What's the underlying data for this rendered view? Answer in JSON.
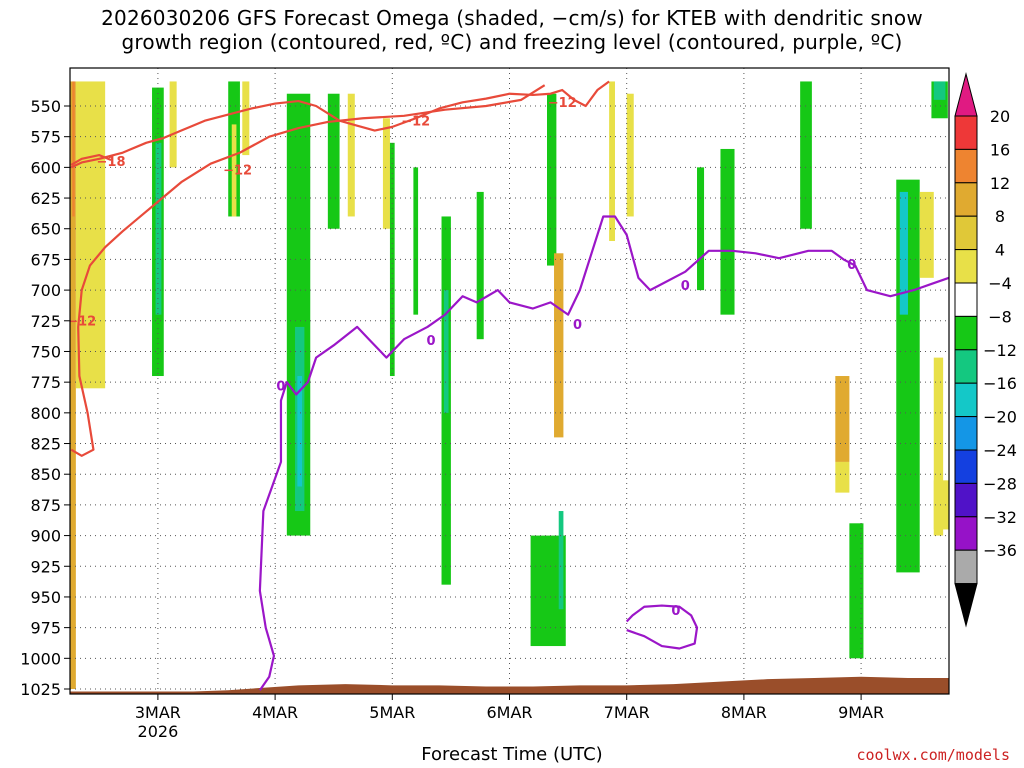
{
  "title_line1": "2026030206 GFS Forecast Omega (shaded, −cm/s) for KTEB with dendritic snow",
  "title_line2": "growth region (contoured, red, ºC) and freezing level (contoured, purple, ºC)",
  "xlabel": "Forecast Time (UTC)",
  "credit": "coolwx.com/models",
  "colors": {
    "dgz_contour": "#e84a3a",
    "freezing_contour": "#9b16c8",
    "ground": "#9a4e2a",
    "gridline": "#555555"
  },
  "chart_data": {
    "type": "heatmap",
    "title": "2026030206 GFS Forecast Omega (shaded, −cm/s) for KTEB with dendritic snow growth region (contoured, red, ºC) and freezing level (contoured, purple, ºC)",
    "xlabel": "Forecast Time (UTC)",
    "ylabel": "",
    "x_ticks": [
      {
        "label": "3MAR",
        "sub": "2026",
        "day": 3
      },
      {
        "label": "4MAR",
        "sub": "",
        "day": 4
      },
      {
        "label": "5MAR",
        "sub": "",
        "day": 5
      },
      {
        "label": "6MAR",
        "sub": "",
        "day": 6
      },
      {
        "label": "7MAR",
        "sub": "",
        "day": 7
      },
      {
        "label": "8MAR",
        "sub": "",
        "day": 8
      },
      {
        "label": "9MAR",
        "sub": "",
        "day": 9
      }
    ],
    "xlim": [
      2.25,
      9.75
    ],
    "y_ticks": [
      550,
      575,
      600,
      625,
      650,
      675,
      700,
      725,
      750,
      775,
      800,
      825,
      850,
      875,
      900,
      925,
      950,
      975,
      1000,
      1025
    ],
    "ylim": [
      1030,
      527
    ],
    "grid": true,
    "colorbar": {
      "labels": [
        "20",
        "16",
        "12",
        "8",
        "4",
        "−4",
        "−8",
        "−12",
        "−16",
        "−20",
        "−24",
        "−28",
        "−32",
        "−36"
      ],
      "boundaries": [
        20,
        16,
        12,
        8,
        4,
        -4,
        -8,
        -12,
        -16,
        -20,
        -24,
        -28,
        -32,
        -36
      ],
      "colors": [
        "#ee3838",
        "#ee8430",
        "#e0aa30",
        "#e0c838",
        "#e8e048",
        "#ffffff",
        "#16c816",
        "#14c880",
        "#14c8c8",
        "#1496e6",
        "#1440e0",
        "#5012c8",
        "#9612c8",
        "#aaaaaa"
      ],
      "top_color": "#e01a82",
      "bottom_color": "#000000"
    },
    "omega_cells": [
      {
        "day": 2.3,
        "day2": 2.55,
        "p1": 530,
        "p2": 780,
        "c": "#e8e048"
      },
      {
        "day": 2.25,
        "day2": 2.3,
        "p1": 530,
        "p2": 1025,
        "c": "#e0aa30"
      },
      {
        "day": 2.27,
        "day2": 2.29,
        "p1": 530,
        "p2": 640,
        "c": "#ee8430"
      },
      {
        "day": 2.95,
        "day2": 3.05,
        "p1": 535,
        "p2": 770,
        "c": "#16c816"
      },
      {
        "day": 2.98,
        "day2": 3.03,
        "p1": 580,
        "p2": 720,
        "c": "#14c880"
      },
      {
        "day": 3.1,
        "day2": 3.16,
        "p1": 530,
        "p2": 600,
        "c": "#e8e048"
      },
      {
        "day": 3.6,
        "day2": 3.7,
        "p1": 530,
        "p2": 640,
        "c": "#16c816"
      },
      {
        "day": 3.72,
        "day2": 3.78,
        "p1": 530,
        "p2": 590,
        "c": "#e8e048"
      },
      {
        "day": 3.63,
        "day2": 3.67,
        "p1": 565,
        "p2": 640,
        "c": "#e8e048"
      },
      {
        "day": 4.1,
        "day2": 4.3,
        "p1": 540,
        "p2": 900,
        "c": "#16c816"
      },
      {
        "day": 4.17,
        "day2": 4.25,
        "p1": 730,
        "p2": 880,
        "c": "#14c880"
      },
      {
        "day": 4.19,
        "day2": 4.23,
        "p1": 770,
        "p2": 860,
        "c": "#14c8c8"
      },
      {
        "day": 4.45,
        "day2": 4.55,
        "p1": 540,
        "p2": 650,
        "c": "#16c816"
      },
      {
        "day": 4.62,
        "day2": 4.68,
        "p1": 540,
        "p2": 640,
        "c": "#e8e048"
      },
      {
        "day": 4.92,
        "day2": 4.98,
        "p1": 560,
        "p2": 650,
        "c": "#e8e048"
      },
      {
        "day": 4.98,
        "day2": 5.02,
        "p1": 580,
        "p2": 770,
        "c": "#16c816"
      },
      {
        "day": 5.18,
        "day2": 5.22,
        "p1": 600,
        "p2": 720,
        "c": "#16c816"
      },
      {
        "day": 5.42,
        "day2": 5.5,
        "p1": 640,
        "p2": 940,
        "c": "#16c816"
      },
      {
        "day": 5.44,
        "day2": 5.48,
        "p1": 700,
        "p2": 800,
        "c": "#14c880"
      },
      {
        "day": 5.72,
        "day2": 5.78,
        "p1": 620,
        "p2": 740,
        "c": "#16c816"
      },
      {
        "day": 6.32,
        "day2": 6.4,
        "p1": 540,
        "p2": 680,
        "c": "#16c816"
      },
      {
        "day": 6.38,
        "day2": 6.46,
        "p1": 670,
        "p2": 820,
        "c": "#e0aa30"
      },
      {
        "day": 6.18,
        "day2": 6.48,
        "p1": 900,
        "p2": 990,
        "c": "#16c816"
      },
      {
        "day": 6.42,
        "day2": 6.46,
        "p1": 880,
        "p2": 960,
        "c": "#14c880"
      },
      {
        "day": 6.85,
        "day2": 6.9,
        "p1": 530,
        "p2": 660,
        "c": "#e8e048"
      },
      {
        "day": 7.0,
        "day2": 7.06,
        "p1": 540,
        "p2": 640,
        "c": "#e8e048"
      },
      {
        "day": 7.8,
        "day2": 7.92,
        "p1": 585,
        "p2": 720,
        "c": "#16c816"
      },
      {
        "day": 7.6,
        "day2": 7.66,
        "p1": 600,
        "p2": 700,
        "c": "#16c816"
      },
      {
        "day": 8.48,
        "day2": 8.58,
        "p1": 530,
        "p2": 650,
        "c": "#16c816"
      },
      {
        "day": 8.78,
        "day2": 8.9,
        "p1": 770,
        "p2": 840,
        "c": "#e0aa30"
      },
      {
        "day": 8.78,
        "day2": 8.9,
        "p1": 840,
        "p2": 865,
        "c": "#e8e048"
      },
      {
        "day": 8.9,
        "day2": 9.02,
        "p1": 890,
        "p2": 1000,
        "c": "#16c816"
      },
      {
        "day": 9.3,
        "day2": 9.5,
        "p1": 610,
        "p2": 930,
        "c": "#16c816"
      },
      {
        "day": 9.33,
        "day2": 9.4,
        "p1": 620,
        "p2": 720,
        "c": "#14c8c8"
      },
      {
        "day": 9.5,
        "day2": 9.62,
        "p1": 620,
        "p2": 690,
        "c": "#e8e048"
      },
      {
        "day": 9.62,
        "day2": 9.7,
        "p1": 755,
        "p2": 900,
        "c": "#e8e048"
      },
      {
        "day": 9.62,
        "day2": 9.75,
        "p1": 855,
        "p2": 895,
        "c": "#e8e048"
      },
      {
        "day": 9.6,
        "day2": 9.74,
        "p1": 530,
        "p2": 560,
        "c": "#16c816"
      },
      {
        "day": 9.62,
        "day2": 9.72,
        "p1": 530,
        "p2": 545,
        "c": "#14c880"
      }
    ],
    "ground_level_hpa": [
      [
        2.25,
        1027
      ],
      [
        3.0,
        1027
      ],
      [
        3.3,
        1027
      ],
      [
        3.6,
        1026
      ],
      [
        3.9,
        1024
      ],
      [
        4.2,
        1022
      ],
      [
        4.6,
        1021
      ],
      [
        5.0,
        1022
      ],
      [
        5.4,
        1022
      ],
      [
        5.8,
        1023
      ],
      [
        6.2,
        1023
      ],
      [
        6.6,
        1022
      ],
      [
        7.0,
        1022
      ],
      [
        7.4,
        1021
      ],
      [
        7.8,
        1019
      ],
      [
        8.2,
        1017
      ],
      [
        8.6,
        1016
      ],
      [
        9.0,
        1015
      ],
      [
        9.4,
        1016
      ],
      [
        9.75,
        1016
      ]
    ],
    "freezing_level": [
      [
        3.87,
        1026
      ],
      [
        3.95,
        1015
      ],
      [
        3.99,
        998
      ],
      [
        3.92,
        975
      ],
      [
        3.87,
        945
      ],
      [
        3.9,
        880
      ],
      [
        4.05,
        840
      ],
      [
        4.05,
        790
      ],
      [
        4.1,
        775
      ],
      [
        4.18,
        785
      ],
      [
        4.28,
        775
      ],
      [
        4.35,
        755
      ],
      [
        4.5,
        745
      ],
      [
        4.7,
        730
      ],
      [
        4.8,
        740
      ],
      [
        4.95,
        755
      ],
      [
        5.1,
        740
      ],
      [
        5.3,
        730
      ],
      [
        5.45,
        720
      ],
      [
        5.6,
        705
      ],
      [
        5.72,
        710
      ],
      [
        5.9,
        700
      ],
      [
        6.0,
        710
      ],
      [
        6.2,
        715
      ],
      [
        6.35,
        710
      ],
      [
        6.5,
        720
      ],
      [
        6.6,
        700
      ],
      [
        6.8,
        640
      ],
      [
        6.9,
        640
      ],
      [
        7.0,
        655
      ],
      [
        7.1,
        690
      ],
      [
        7.2,
        700
      ],
      [
        7.3,
        695
      ],
      [
        7.5,
        685
      ],
      [
        7.7,
        668
      ],
      [
        7.9,
        668
      ],
      [
        8.1,
        670
      ],
      [
        8.3,
        674
      ],
      [
        8.55,
        668
      ],
      [
        8.75,
        668
      ],
      [
        8.85,
        675
      ],
      [
        8.95,
        680
      ],
      [
        9.05,
        700
      ],
      [
        9.25,
        705
      ],
      [
        9.45,
        700
      ],
      [
        9.6,
        695
      ],
      [
        9.75,
        690
      ]
    ],
    "freezing_level_low": [
      [
        7.0,
        970
      ],
      [
        7.05,
        965
      ],
      [
        7.15,
        958
      ],
      [
        7.3,
        957
      ],
      [
        7.45,
        958
      ],
      [
        7.55,
        965
      ],
      [
        7.6,
        975
      ],
      [
        7.58,
        988
      ],
      [
        7.45,
        992
      ],
      [
        7.3,
        990
      ],
      [
        7.15,
        982
      ],
      [
        7.0,
        977
      ]
    ],
    "dgz_minus12": [
      [
        2.26,
        600
      ],
      [
        2.35,
        596
      ],
      [
        2.5,
        593
      ],
      [
        2.7,
        588
      ],
      [
        2.9,
        580
      ],
      [
        3.05,
        576
      ],
      [
        3.2,
        570
      ],
      [
        3.4,
        562
      ],
      [
        3.6,
        557
      ],
      [
        3.8,
        552
      ],
      [
        4.0,
        548
      ],
      [
        4.2,
        546
      ],
      [
        4.35,
        550
      ],
      [
        4.55,
        562
      ],
      [
        4.7,
        566
      ],
      [
        4.85,
        570
      ],
      [
        5.0,
        567
      ],
      [
        5.2,
        560
      ],
      [
        5.4,
        552
      ],
      [
        5.6,
        547
      ],
      [
        5.8,
        544
      ],
      [
        6.0,
        540
      ],
      [
        6.2,
        541
      ],
      [
        6.35,
        540
      ],
      [
        6.45,
        537
      ],
      [
        6.55,
        545
      ],
      [
        6.65,
        550
      ],
      [
        6.75,
        537
      ],
      [
        6.85,
        530
      ]
    ],
    "dgz_minus12_left": [
      [
        2.26,
        830
      ],
      [
        2.35,
        835
      ],
      [
        2.45,
        830
      ],
      [
        2.4,
        800
      ],
      [
        2.33,
        770
      ],
      [
        2.32,
        730
      ],
      [
        2.35,
        700
      ],
      [
        2.42,
        680
      ],
      [
        2.55,
        665
      ],
      [
        2.7,
        652
      ],
      [
        2.85,
        640
      ],
      [
        3.0,
        628
      ],
      [
        3.2,
        612
      ],
      [
        3.45,
        597
      ],
      [
        3.7,
        588
      ],
      [
        3.95,
        575
      ],
      [
        4.2,
        568
      ],
      [
        4.45,
        563
      ],
      [
        4.75,
        560
      ],
      [
        5.1,
        558
      ],
      [
        5.45,
        553
      ],
      [
        5.8,
        550
      ],
      [
        6.1,
        545
      ],
      [
        6.3,
        533
      ]
    ],
    "dgz_minus18": [
      [
        2.26,
        598
      ],
      [
        2.35,
        593
      ],
      [
        2.5,
        590
      ],
      [
        2.6,
        594
      ]
    ],
    "contour_labels": [
      {
        "text": "−18",
        "day": 2.6,
        "p": 596,
        "c": "#e84a3a"
      },
      {
        "text": "−12",
        "day": 3.68,
        "p": 603,
        "c": "#e84a3a"
      },
      {
        "text": "−12",
        "day": 5.2,
        "p": 563,
        "c": "#e84a3a"
      },
      {
        "text": "−12",
        "day": 6.45,
        "p": 548,
        "c": "#e84a3a"
      },
      {
        "text": "−12",
        "day": 2.35,
        "p": 726,
        "c": "#e84a3a"
      },
      {
        "text": "0",
        "day": 4.05,
        "p": 779,
        "c": "#9b16c8"
      },
      {
        "text": "0",
        "day": 5.33,
        "p": 742,
        "c": "#9b16c8"
      },
      {
        "text": "0",
        "day": 6.58,
        "p": 729,
        "c": "#9b16c8"
      },
      {
        "text": "0",
        "day": 7.5,
        "p": 697,
        "c": "#9b16c8"
      },
      {
        "text": "0",
        "day": 8.92,
        "p": 680,
        "c": "#9b16c8"
      },
      {
        "text": "0",
        "day": 7.42,
        "p": 962,
        "c": "#9b16c8"
      }
    ]
  }
}
